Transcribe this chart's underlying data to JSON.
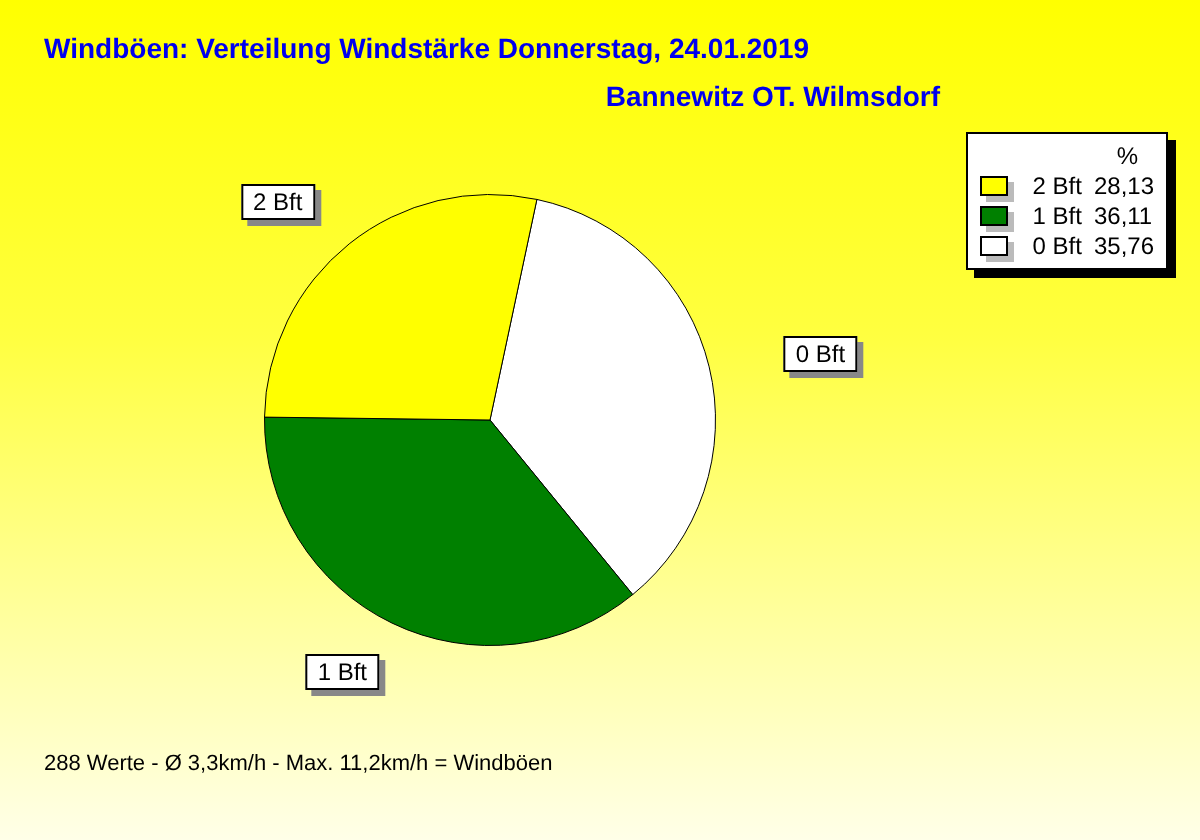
{
  "chart_data": {
    "type": "pie",
    "title": "Windböen: Verteilung Windstärke  Donnerstag, 24.01.2019",
    "subtitle": "Bannewitz OT. Wilmsdorf",
    "categories": [
      "2 Bft",
      "1 Bft",
      "0 Bft"
    ],
    "values": [
      28.13,
      36.11,
      35.76
    ],
    "value_labels": [
      "28,13",
      "36,11",
      "35,76"
    ],
    "colors": [
      "#ffff00",
      "#008000",
      "#ffffff"
    ],
    "legend": "top right",
    "legend_title": "%",
    "annotations": [
      "288 Werte   -   Ø 3,3km/h  -  Max. 11,2km/h = Windböen"
    ]
  }
}
